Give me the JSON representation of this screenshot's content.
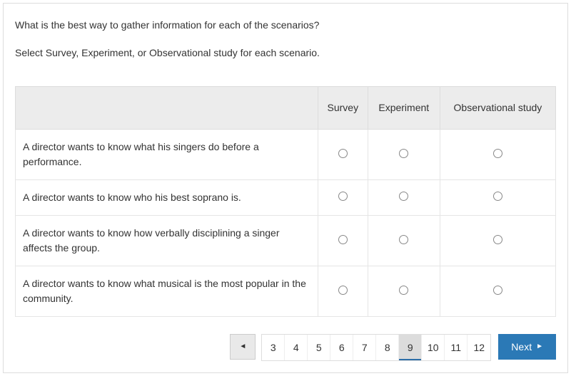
{
  "question": "What is the best way to gather information for each of the scenarios?",
  "instruction": "Select Survey, Experiment, or Observational study for each scenario.",
  "columns": {
    "survey": "Survey",
    "experiment": "Experiment",
    "observational": "Observational study"
  },
  "rows": {
    "r0": "A director wants to know what his singers do before a performance.",
    "r1": "A director wants to know who his best soprano is.",
    "r2": "A director wants to know how verbally disciplining a singer affects the group.",
    "r3": "A director wants to know what musical is the most popular in the community."
  },
  "pager": {
    "pages": {
      "p0": "3",
      "p1": "4",
      "p2": "5",
      "p3": "6",
      "p4": "7",
      "p5": "8",
      "p6": "9",
      "p7": "10",
      "p8": "11",
      "p9": "12"
    },
    "active_index": 6,
    "next_label": "Next"
  },
  "colors": {
    "header_bg": "#ececec",
    "border": "#ddd",
    "next_btn_bg": "#2b79b6",
    "active_underline": "#2d6ea8",
    "text": "#333333"
  }
}
